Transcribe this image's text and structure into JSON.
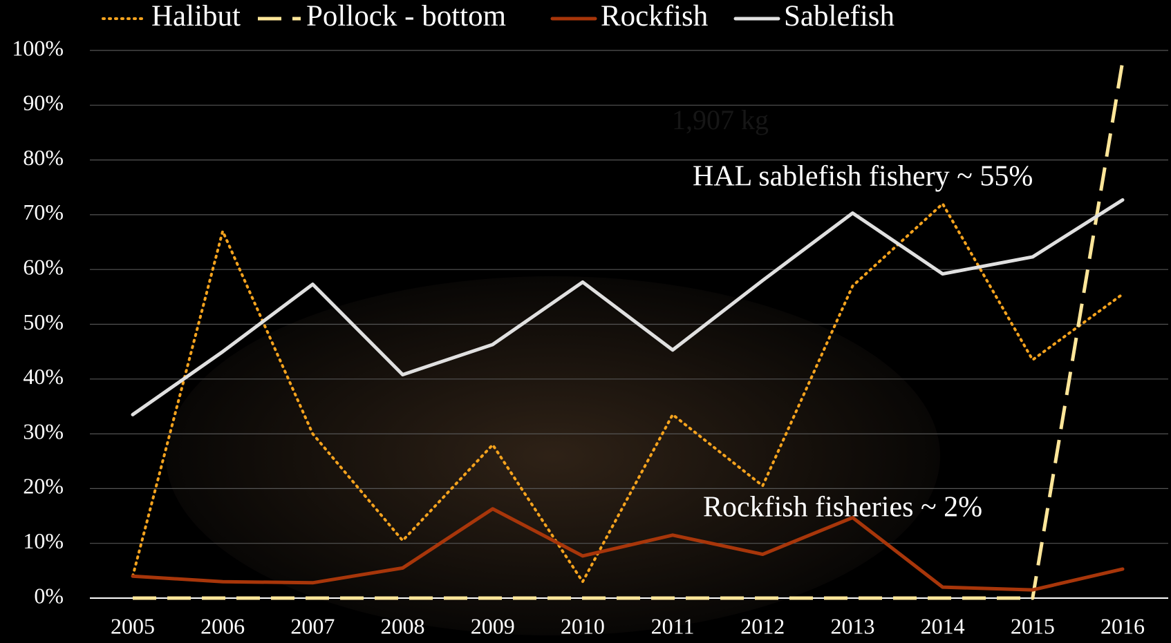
{
  "chart_data": {
    "type": "line",
    "categories": [
      "2005",
      "2006",
      "2007",
      "2008",
      "2009",
      "2010",
      "2011",
      "2012",
      "2013",
      "2014",
      "2015",
      "2016"
    ],
    "series": [
      {
        "name": "Halibut",
        "color": "#f5a31e",
        "dash": "dotted",
        "values": [
          4,
          67,
          30,
          10.5,
          28,
          3,
          33.5,
          20.5,
          57,
          72,
          43.5,
          55.5
        ]
      },
      {
        "name": "Pollock - bottom",
        "color": "#ffe699",
        "dash": "dashed",
        "values": [
          0,
          0,
          0,
          0,
          0,
          0,
          0,
          0,
          0,
          0,
          0,
          98
        ]
      },
      {
        "name": "Rockfish",
        "color": "#a8360a",
        "dash": "solid",
        "values": [
          4,
          3,
          2.8,
          5.5,
          16.3,
          7.7,
          11.5,
          8,
          14.7,
          2,
          1.5,
          5.3
        ]
      },
      {
        "name": "Sablefish",
        "color": "#e0e0e0",
        "dash": "solid",
        "values": [
          33.5,
          45,
          57.3,
          40.8,
          46.3,
          57.7,
          45.3,
          58,
          70.3,
          59.2,
          62.3,
          72.7
        ]
      }
    ],
    "ylim": [
      0,
      100
    ],
    "yticks": [
      {
        "value": 0,
        "label": "0%"
      },
      {
        "value": 10,
        "label": "10%"
      },
      {
        "value": 20,
        "label": "20%"
      },
      {
        "value": 30,
        "label": "30%"
      },
      {
        "value": 40,
        "label": "40%"
      },
      {
        "value": 50,
        "label": "50%"
      },
      {
        "value": 60,
        "label": "60%"
      },
      {
        "value": 70,
        "label": "70%"
      },
      {
        "value": 80,
        "label": "80%"
      },
      {
        "value": 90,
        "label": "90%"
      },
      {
        "value": 100,
        "label": "100%"
      }
    ],
    "grid": true,
    "legend": "top",
    "annotations": [
      "HAL sablefish fishery ~ 55%",
      "Rockfish fisheries ~ 2%",
      "1,907 kg"
    ]
  }
}
